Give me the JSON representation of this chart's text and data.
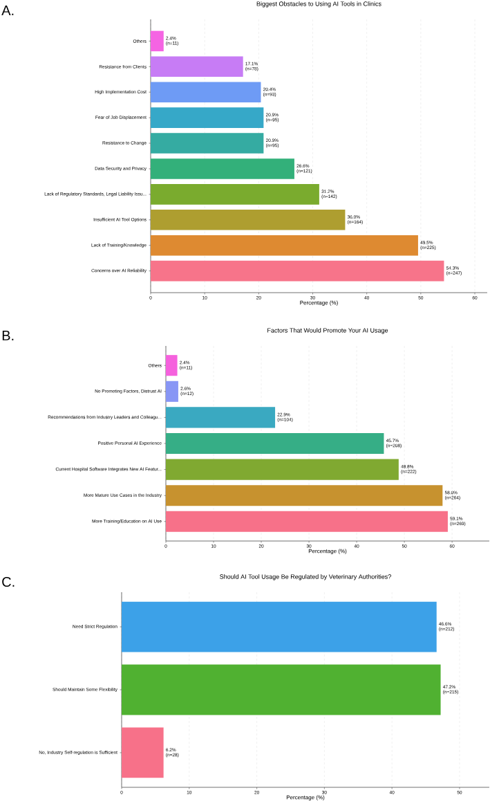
{
  "chart_data": [
    {
      "type": "bar",
      "orientation": "horizontal",
      "title": "Biggest Obstacles to Using AI Tools in Clinics",
      "xlabel": "Percentage (%)",
      "annotations": [
        "A."
      ],
      "grid": "x",
      "categories": [
        "Others",
        "Resistance from Clients",
        "High Implementation Cost",
        "Fear of Job Displacement",
        "Resistance to Change",
        "Data Security and Privacy",
        "Lack of Regulatory Standards, Legal Liability Issu...",
        "Insufficient AI Tool Options",
        "Lack of Training/Knowledge",
        "Concerns over AI Reliability"
      ],
      "values": [
        2.4,
        17.1,
        20.4,
        20.9,
        20.9,
        26.6,
        31.2,
        36.0,
        49.5,
        54.3
      ],
      "value_labels": [
        "2.4% (n=11)",
        "17.1% (n=78)",
        "20.4% (n=93)",
        "20.9% (n=95)",
        "20.9% (n=95)",
        "26.6% (n=121)",
        "31.2% (n=142)",
        "36.0% (n=164)",
        "49.5% (n=225)",
        "54.3% (n=247)"
      ],
      "colors": [
        "#f564e3",
        "#c77cf5",
        "#6e9bf5",
        "#36a8c8",
        "#35aba2",
        "#33b07a",
        "#7aab2e",
        "#ae9e30",
        "#de8a31",
        "#f7748a"
      ],
      "xlim": [
        0,
        62.3
      ],
      "xticks": [
        0,
        10,
        20,
        30,
        40,
        50,
        60
      ]
    },
    {
      "type": "bar",
      "orientation": "horizontal",
      "title": "Factors That Would Promote Your AI Usage",
      "xlabel": "Percentage (%)",
      "annotations": [
        "B."
      ],
      "grid": "x",
      "categories": [
        "Others",
        "No Promoting Factors, Distrust AI",
        "Recommendations from Industry Leaders and Colleagu...",
        "Positive Personal AI Experience",
        "Current Hospital Software Integrates New AI Featur...",
        "More Mature Use Cases in the Industry",
        "More Training/Education on AI Use"
      ],
      "values": [
        2.4,
        2.6,
        22.9,
        45.7,
        48.8,
        58.0,
        59.1
      ],
      "value_labels": [
        "2.4% (n=11)",
        "2.6% (n=12)",
        "22.9% (n=104)",
        "45.7% (n=208)",
        "48.8% (n=222)",
        "58.0% (n=264)",
        "59.1% (n=269)"
      ],
      "colors": [
        "#f561dd",
        "#8896f5",
        "#3aa9c1",
        "#36ae86",
        "#80a931",
        "#c7922f",
        "#f77189"
      ],
      "xlim": [
        0,
        67.8
      ],
      "xticks": [
        0,
        10,
        20,
        30,
        40,
        50,
        60
      ]
    },
    {
      "type": "bar",
      "orientation": "horizontal",
      "title": "Should AI Tool Usage Be Regulated by Veterinary Authorities?",
      "xlabel": "Percentage (%)",
      "annotations": [
        "C."
      ],
      "grid": "x",
      "categories": [
        "Need Strict Regulation",
        "Should Maintain Some Flexibility",
        "No, Industry Self-regulation is Sufficient"
      ],
      "values": [
        46.6,
        47.2,
        6.2
      ],
      "value_labels": [
        "46.6% (n=212)",
        "47.2% (n=215)",
        "6.2% (n=28)"
      ],
      "colors": [
        "#3ca1e8",
        "#50b131",
        "#f77189"
      ],
      "xlim": [
        0,
        54.4
      ],
      "xticks": [
        0,
        10,
        20,
        30,
        40,
        50
      ]
    }
  ]
}
